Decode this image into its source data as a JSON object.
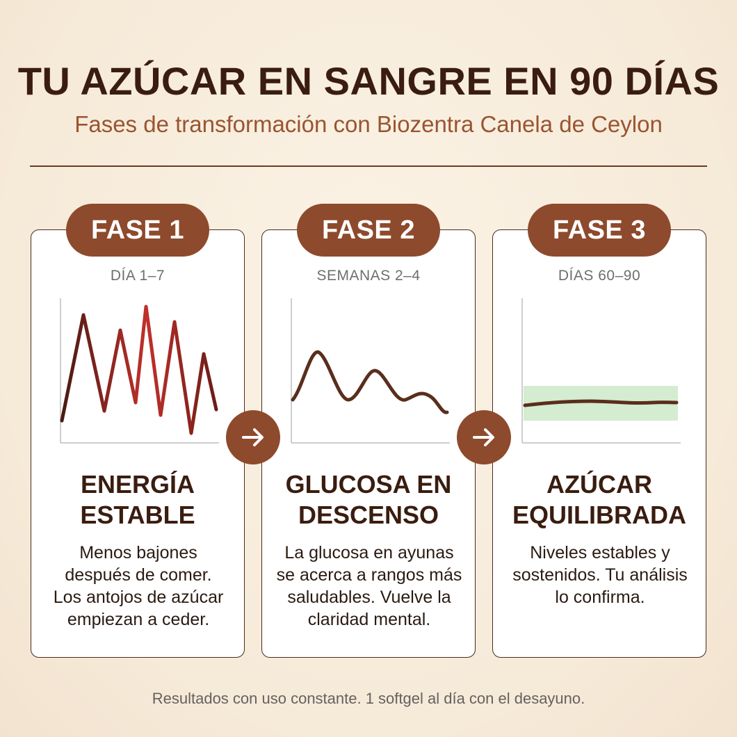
{
  "header": {
    "title": "TU AZÚCAR EN SANGRE EN 90 DÍAS",
    "subtitle": "Fases de transformación con Biozentra Canela de Ceylon"
  },
  "phases": [
    {
      "label": "FASE 1",
      "period": "DÍA 1–7",
      "title_line1": "ENERGÍA",
      "title_line2": "ESTABLE",
      "desc_lines": [
        "Menos bajones",
        "después de comer.",
        "Los antojos de azúcar",
        "empiezan a ceder."
      ]
    },
    {
      "label": "FASE 2",
      "period": "SEMANAS 2–4",
      "title_line1": "GLUCOSA EN",
      "title_line2": "DESCENSO",
      "desc_lines": [
        "La glucosa en ayunas",
        "se acerca a rangos más",
        "saludables. Vuelve la",
        "claridad mental."
      ]
    },
    {
      "label": "FASE 3",
      "period": "DÍAS 60–90",
      "title_line1": "AZÚCAR",
      "title_line2": "EQUILIBRADA",
      "desc_lines": [
        "Niveles estables y",
        "sostenidos. Tu análisis",
        "lo confirma."
      ]
    }
  ],
  "arrows": [
    "arrow-right-icon",
    "arrow-right-icon"
  ],
  "footer": "Resultados con uso constante. 1 softgel al día con el desayuno.",
  "colors": {
    "accent": "#8e4a2c",
    "dark_brown": "#3a1d10",
    "spike_red": "#c0302a",
    "stable_band": "#d4ecd0"
  }
}
